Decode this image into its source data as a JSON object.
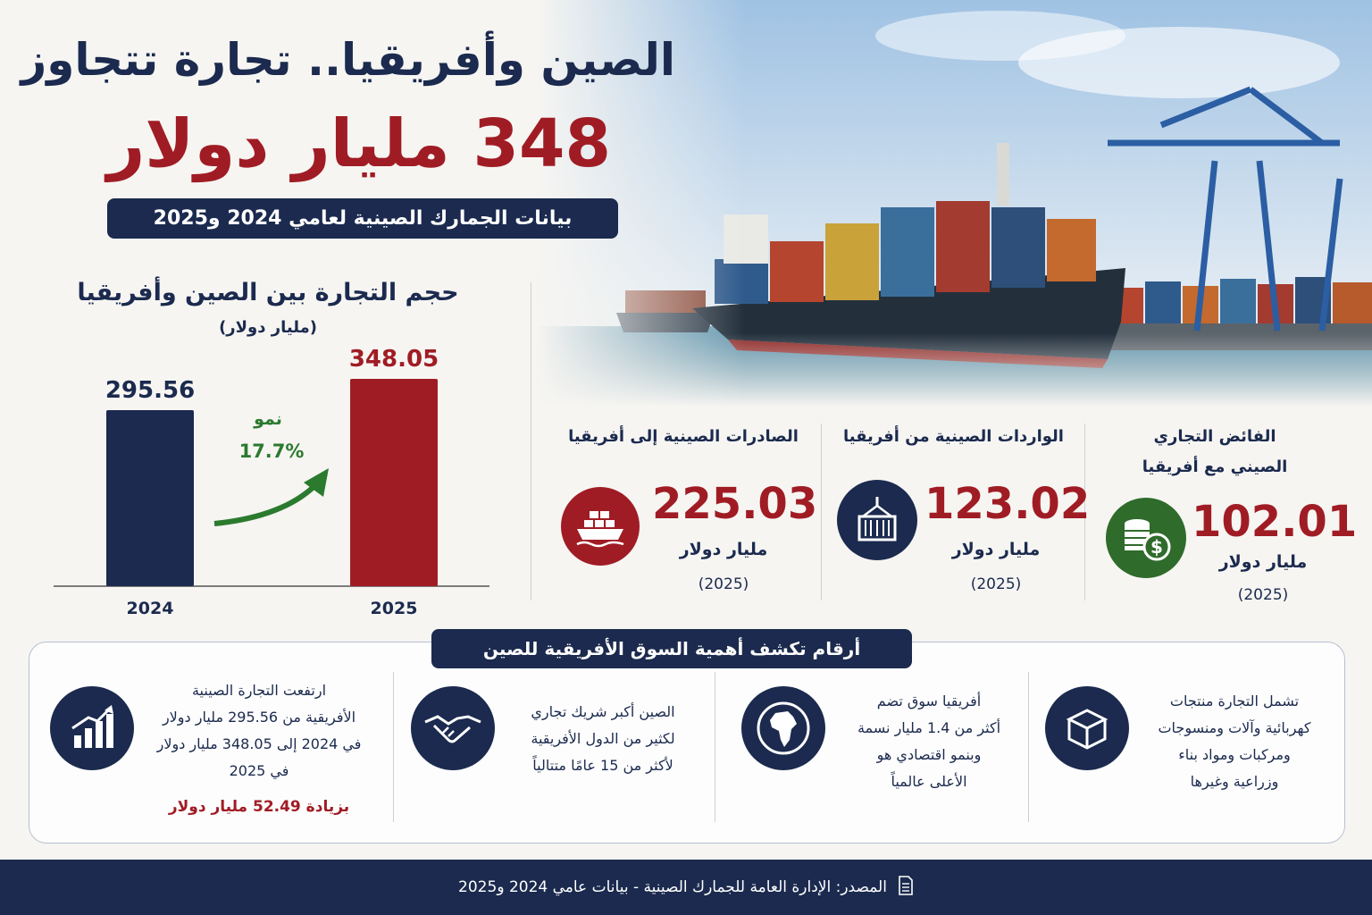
{
  "header": {
    "title_line1": "الصين وأفريقيا.. تجارة تتجاوز",
    "title_line2": "348 مليار دولار",
    "subtitle": "بيانات الجمارك الصينية لعامي 2024 و2025"
  },
  "chart_data": {
    "type": "bar",
    "title": "حجم التجارة بين الصين وأفريقيا",
    "unit": "(مليار دولار)",
    "categories": [
      "2024",
      "2025"
    ],
    "values": [
      295.56,
      348.05
    ],
    "value_labels": [
      "295.56",
      "348.05"
    ],
    "bar_colors": [
      "#1b2a4e",
      "#a01c24"
    ],
    "ylim": [
      0,
      360
    ],
    "growth_label": "نمو",
    "growth_value": "17.7%",
    "growth_color": "#2b7a2e"
  },
  "stats": [
    {
      "label": "الصادرات الصينية إلى أفريقيا",
      "value": "225.03",
      "unit": "مليار دولار",
      "year": "(2025)",
      "icon": "cargo-ship-icon",
      "color": "#a01c24"
    },
    {
      "label": "الواردات الصينية من أفريقيا",
      "value": "123.02",
      "unit": "مليار دولار",
      "year": "(2025)",
      "icon": "container-crane-icon",
      "color": "#1b2a4e"
    },
    {
      "label_line1": "الفائض التجاري",
      "label_line2": "الصيني مع أفريقيا",
      "value": "102.01",
      "unit": "مليار دولار",
      "year": "(2025)",
      "icon": "coins-dollar-icon",
      "color": "#2f6b2a"
    }
  ],
  "facts": {
    "title": "أرقام تكشف أهمية السوق الأفريقية للصين",
    "items": [
      {
        "lines": [
          "تشمل التجارة منتجات",
          "كهربائية وآلات ومنسوجات",
          "ومركبات ومواد بناء",
          "وزراعية وغيرها"
        ],
        "icon": "open-box-icon"
      },
      {
        "lines": [
          "أفريقيا سوق تضم",
          "أكثر من 1.4 مليار نسمة",
          "وبنمو اقتصادي هو",
          "الأعلى عالمياً"
        ],
        "icon": "africa-globe-icon"
      },
      {
        "lines": [
          "الصين أكبر شريك تجاري",
          "لكثير من الدول الأفريقية",
          "لأكثر من 15 عامًا متتالياً"
        ],
        "icon": "handshake-icon"
      },
      {
        "lines": [
          "ارتفعت التجارة الصينية",
          "الأفريقية من 295.56 مليار دولار",
          "في 2024 إلى 348.05 مليار دولار",
          "في 2025"
        ],
        "highlight": "بزيادة 52.49 مليار دولار",
        "icon": "growth-chart-icon"
      }
    ]
  },
  "footer": {
    "source": "المصدر: الإدارة العامة للجمارك الصينية - بيانات عامي 2024 و2025",
    "icon": "document-icon"
  },
  "colors": {
    "navy": "#1b2a4e",
    "red": "#a01c24",
    "green": "#2b7a2e"
  }
}
